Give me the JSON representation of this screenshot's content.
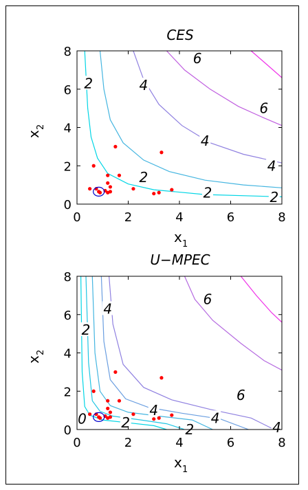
{
  "chart_data": [
    {
      "type": "contour",
      "title": "CES",
      "xlabel": "x",
      "xlabel_sub": "1",
      "ylabel": "x",
      "ylabel_sub": "2",
      "xlim": [
        0,
        8
      ],
      "ylim": [
        0,
        8
      ],
      "xticks": [
        "0",
        "2",
        "4",
        "6",
        "8"
      ],
      "yticks": [
        "0",
        "2",
        "4",
        "6",
        "8"
      ],
      "contour_levels": [
        {
          "color": "#00d5e5",
          "points": [
            [
              0.3,
              8
            ],
            [
              0.42,
              5
            ],
            [
              0.55,
              3.5
            ],
            [
              0.8,
              2.4
            ],
            [
              1.2,
              1.6
            ],
            [
              2,
              1.05
            ],
            [
              3,
              0.75
            ],
            [
              5,
              0.5
            ],
            [
              8,
              0.38
            ]
          ]
        },
        {
          "color": "#44b5e0",
          "points": [
            [
              0.9,
              8
            ],
            [
              1.05,
              6
            ],
            [
              1.3,
              4.4
            ],
            [
              1.8,
              3.2
            ],
            [
              2.6,
              2.3
            ],
            [
              3.6,
              1.7
            ],
            [
              5,
              1.25
            ],
            [
              6.5,
              1.0
            ],
            [
              8,
              0.85
            ]
          ]
        },
        {
          "color": "#8f80e0",
          "points": [
            [
              2.2,
              8
            ],
            [
              2.6,
              6.5
            ],
            [
              3.2,
              5.2
            ],
            [
              4.1,
              4.1
            ],
            [
              5.2,
              3.2
            ],
            [
              6.5,
              2.6
            ],
            [
              8,
              2.15
            ]
          ]
        },
        {
          "color": "#c060e0",
          "points": [
            [
              3.5,
              8
            ],
            [
              4.2,
              7.0
            ],
            [
              5.2,
              6.0
            ],
            [
              6.3,
              5.1
            ],
            [
              7.3,
              4.5
            ],
            [
              8,
              4.1
            ]
          ]
        },
        {
          "color": "#ef30e8",
          "points": [
            [
              6.8,
              8
            ],
            [
              7.4,
              7.3
            ],
            [
              8,
              6.6
            ]
          ]
        }
      ],
      "contour_labels": [
        {
          "text": "2",
          "x": 0.45,
          "y": 6.3
        },
        {
          "text": "4",
          "x": 2.6,
          "y": 6.2
        },
        {
          "text": "6",
          "x": 4.7,
          "y": 7.6
        },
        {
          "text": "6",
          "x": 7.3,
          "y": 5.0
        },
        {
          "text": "4",
          "x": 5.0,
          "y": 3.3
        },
        {
          "text": "4",
          "x": 7.6,
          "y": 2.0
        },
        {
          "text": "2",
          "x": 2.6,
          "y": 1.4
        },
        {
          "text": "2",
          "x": 5.1,
          "y": 0.6
        },
        {
          "text": "2",
          "x": 7.7,
          "y": 0.35
        }
      ],
      "scatter": {
        "color": "#ff0000",
        "points": [
          [
            0.5,
            0.8
          ],
          [
            0.65,
            2.0
          ],
          [
            0.75,
            0.8
          ],
          [
            0.85,
            0.65
          ],
          [
            0.9,
            0.6
          ],
          [
            1.1,
            0.7
          ],
          [
            1.2,
            0.6
          ],
          [
            1.2,
            1.1
          ],
          [
            1.3,
            0.9
          ],
          [
            1.3,
            0.65
          ],
          [
            1.5,
            3.0
          ],
          [
            1.65,
            1.5
          ],
          [
            1.2,
            1.5
          ],
          [
            2.2,
            0.8
          ],
          [
            3.0,
            0.55
          ],
          [
            3.2,
            0.6
          ],
          [
            3.3,
            2.7
          ],
          [
            3.7,
            0.75
          ]
        ]
      },
      "highlight": {
        "color": "#0000cc",
        "x": 0.85,
        "y": 0.65
      }
    },
    {
      "type": "contour",
      "title": "U−MPEC",
      "xlabel": "x",
      "xlabel_sub": "1",
      "ylabel": "x",
      "ylabel_sub": "2",
      "xlim": [
        0,
        8
      ],
      "ylim": [
        0,
        8
      ],
      "xticks": [
        "0",
        "2",
        "4",
        "6",
        "8"
      ],
      "yticks": [
        "0",
        "2",
        "4",
        "6",
        "8"
      ],
      "contour_levels": [
        {
          "color": "#00d5e5",
          "points": [
            [
              0.15,
              8
            ],
            [
              0.2,
              3
            ],
            [
              0.3,
              1.2
            ],
            [
              0.5,
              0.75
            ],
            [
              1,
              0.5
            ],
            [
              2,
              0.35
            ],
            [
              3,
              0.2
            ],
            [
              3.5,
              0
            ]
          ]
        },
        {
          "color": "#20c5e3",
          "points": [
            [
              0.35,
              8
            ],
            [
              0.45,
              3.5
            ],
            [
              0.6,
              1.5
            ],
            [
              0.9,
              0.95
            ],
            [
              1.4,
              0.7
            ],
            [
              2.5,
              0.5
            ],
            [
              3.5,
              0.3
            ],
            [
              4.2,
              0
            ]
          ]
        },
        {
          "color": "#44b5e0",
          "points": [
            [
              0.6,
              8
            ],
            [
              0.7,
              4
            ],
            [
              0.9,
              2.0
            ],
            [
              1.3,
              1.25
            ],
            [
              2,
              0.9
            ],
            [
              3.2,
              0.7
            ],
            [
              4.5,
              0.5
            ],
            [
              5.3,
              0
            ]
          ]
        },
        {
          "color": "#6a9ee0",
          "points": [
            [
              0.95,
              8
            ],
            [
              1.05,
              4.6
            ],
            [
              1.3,
              2.6
            ],
            [
              1.9,
              1.6
            ],
            [
              2.8,
              1.15
            ],
            [
              4.1,
              0.85
            ],
            [
              5.6,
              0.55
            ],
            [
              6.7,
              0
            ]
          ]
        },
        {
          "color": "#8f80e0",
          "points": [
            [
              1.25,
              8
            ],
            [
              1.4,
              5.5
            ],
            [
              1.8,
              3.4
            ],
            [
              2.6,
              2.2
            ],
            [
              3.7,
              1.55
            ],
            [
              5.2,
              1.05
            ],
            [
              6.8,
              0.6
            ],
            [
              7.7,
              0
            ]
          ]
        },
        {
          "color": "#b56ae0",
          "points": [
            [
              4.2,
              8
            ],
            [
              4.6,
              6.8
            ],
            [
              5.3,
              5.7
            ],
            [
              6.4,
              4.5
            ],
            [
              7.3,
              3.6
            ],
            [
              8,
              3.1
            ]
          ]
        },
        {
          "color": "#ef30e8",
          "points": [
            [
              6.4,
              8
            ],
            [
              7.0,
              7.0
            ],
            [
              7.6,
              6.1
            ],
            [
              8,
              5.6
            ]
          ]
        }
      ],
      "contour_labels": [
        {
          "text": "2",
          "x": 0.35,
          "y": 5.2
        },
        {
          "text": "4",
          "x": 1.2,
          "y": 6.3
        },
        {
          "text": "6",
          "x": 5.1,
          "y": 6.8
        },
        {
          "text": "6",
          "x": 6.4,
          "y": 1.8
        },
        {
          "text": "4",
          "x": 3.0,
          "y": 1.0
        },
        {
          "text": "4",
          "x": 5.4,
          "y": 0.6
        },
        {
          "text": "2",
          "x": 1.9,
          "y": 0.35
        },
        {
          "text": "2",
          "x": 4.4,
          "y": 0
        },
        {
          "text": "0",
          "x": 0.2,
          "y": 0.55
        },
        {
          "text": "4",
          "x": 7.8,
          "y": 0.1
        }
      ],
      "scatter": {
        "color": "#ff0000",
        "points": [
          [
            0.5,
            0.8
          ],
          [
            0.65,
            2.0
          ],
          [
            0.75,
            0.8
          ],
          [
            0.85,
            0.65
          ],
          [
            0.9,
            0.6
          ],
          [
            1.1,
            0.7
          ],
          [
            1.2,
            0.6
          ],
          [
            1.2,
            1.1
          ],
          [
            1.3,
            0.9
          ],
          [
            1.3,
            0.65
          ],
          [
            1.5,
            3.0
          ],
          [
            1.65,
            1.5
          ],
          [
            1.2,
            1.5
          ],
          [
            2.2,
            0.8
          ],
          [
            3.0,
            0.55
          ],
          [
            3.2,
            0.6
          ],
          [
            3.3,
            2.7
          ],
          [
            3.7,
            0.75
          ]
        ]
      },
      "highlight": {
        "color": "#0000cc",
        "x": 0.85,
        "y": 0.65
      }
    }
  ]
}
